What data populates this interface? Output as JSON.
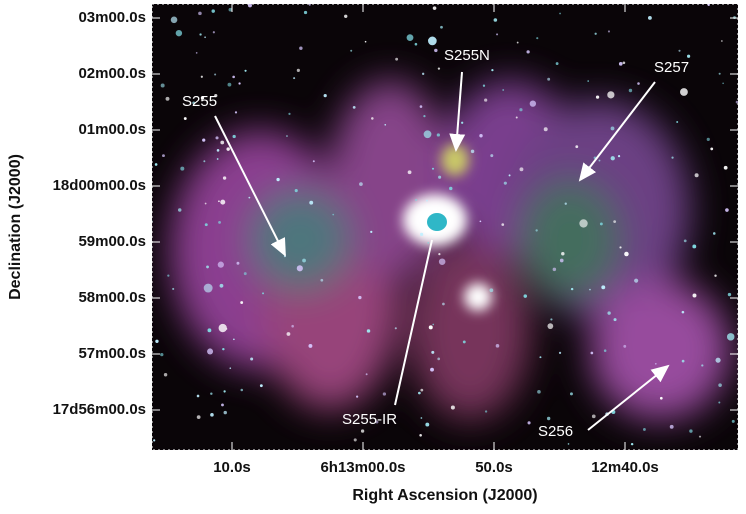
{
  "axes": {
    "x_label": "Right Ascension (J2000)",
    "y_label": "Declination (J2000)",
    "x_ticks": [
      "10.0s",
      "6h13m00.0s",
      "50.0s",
      "12m40.0s"
    ],
    "y_ticks": [
      "03m00.0s",
      "02m00.0s",
      "01m00.0s",
      "18d00m00.0s",
      "59m00.0s",
      "58m00.0s",
      "57m00.0s",
      "17d56m00.0s"
    ]
  },
  "annotations": [
    "S255",
    "S255N",
    "S257",
    "S255-IR",
    "S256"
  ]
}
